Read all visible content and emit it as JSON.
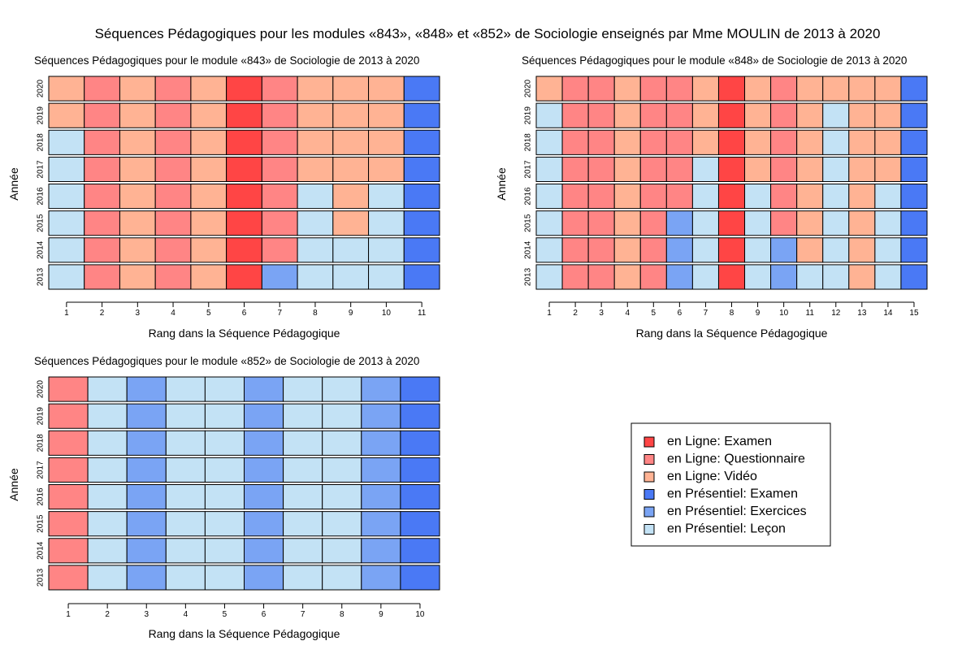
{
  "title": "Séquences Pédagogiques pour les modules «843», «848» et «852» de Sociologie enseignés par Mme MOULIN de 2013 à 2020",
  "legend": {
    "placement": "bottom-right",
    "entries": [
      {
        "key": "LE",
        "label": "en Ligne: Examen",
        "color": "#ff4545"
      },
      {
        "key": "LQ",
        "label": "en Ligne: Questionnaire",
        "color": "#ff8585"
      },
      {
        "key": "LV",
        "label": "en Ligne: Vidéo",
        "color": "#ffb394"
      },
      {
        "key": "PE",
        "label": "en Présentiel: Examen",
        "color": "#4a79f5"
      },
      {
        "key": "PX",
        "label": "en Présentiel: Exercices",
        "color": "#7aa4f4"
      },
      {
        "key": "PL",
        "label": "en Présentiel: Leçon",
        "color": "#c3e2f5"
      }
    ]
  },
  "chart_data": [
    {
      "type": "heatmap",
      "title": "Séquences Pédagogiques pour le module «843» de Sociologie de 2013 à 2020",
      "xlabel": "Rang dans la Séquence Pédagogique",
      "ylabel": "Année",
      "x": [
        1,
        2,
        3,
        4,
        5,
        6,
        7,
        8,
        9,
        10,
        11
      ],
      "years": [
        "2020",
        "2019",
        "2018",
        "2017",
        "2016",
        "2015",
        "2014",
        "2013"
      ],
      "rows": [
        [
          "LV",
          "LQ",
          "LV",
          "LQ",
          "LV",
          "LE",
          "LQ",
          "LV",
          "LV",
          "LV",
          "PE"
        ],
        [
          "LV",
          "LQ",
          "LV",
          "LQ",
          "LV",
          "LE",
          "LQ",
          "LV",
          "LV",
          "LV",
          "PE"
        ],
        [
          "PL",
          "LQ",
          "LV",
          "LQ",
          "LV",
          "LE",
          "LQ",
          "LV",
          "LV",
          "LV",
          "PE"
        ],
        [
          "PL",
          "LQ",
          "LV",
          "LQ",
          "LV",
          "LE",
          "LQ",
          "LV",
          "LV",
          "LV",
          "PE"
        ],
        [
          "PL",
          "LQ",
          "LV",
          "LQ",
          "LV",
          "LE",
          "LQ",
          "PL",
          "LV",
          "PL",
          "PE"
        ],
        [
          "PL",
          "LQ",
          "LV",
          "LQ",
          "LV",
          "LE",
          "LQ",
          "PL",
          "LV",
          "PL",
          "PE"
        ],
        [
          "PL",
          "LQ",
          "LV",
          "LQ",
          "LV",
          "LE",
          "LQ",
          "PL",
          "PL",
          "PL",
          "PE"
        ],
        [
          "PL",
          "LQ",
          "LV",
          "LQ",
          "LV",
          "LE",
          "PX",
          "PL",
          "PL",
          "PL",
          "PE"
        ]
      ]
    },
    {
      "type": "heatmap",
      "title": "Séquences Pédagogiques pour le module «848» de Sociologie de 2013 à 2020",
      "xlabel": "Rang dans la Séquence Pédagogique",
      "ylabel": "Année",
      "x": [
        1,
        2,
        3,
        4,
        5,
        6,
        7,
        8,
        9,
        10,
        11,
        12,
        13,
        14,
        15
      ],
      "years": [
        "2020",
        "2019",
        "2018",
        "2017",
        "2016",
        "2015",
        "2014",
        "2013"
      ],
      "rows": [
        [
          "LV",
          "LQ",
          "LQ",
          "LV",
          "LQ",
          "LQ",
          "LV",
          "LE",
          "LV",
          "LQ",
          "LV",
          "LV",
          "LV",
          "LV",
          "PE"
        ],
        [
          "PL",
          "LQ",
          "LQ",
          "LV",
          "LQ",
          "LQ",
          "LV",
          "LE",
          "LV",
          "LQ",
          "LV",
          "PL",
          "LV",
          "LV",
          "PE"
        ],
        [
          "PL",
          "LQ",
          "LQ",
          "LV",
          "LQ",
          "LQ",
          "LV",
          "LE",
          "LV",
          "LQ",
          "LV",
          "PL",
          "LV",
          "LV",
          "PE"
        ],
        [
          "PL",
          "LQ",
          "LQ",
          "LV",
          "LQ",
          "LQ",
          "PL",
          "LE",
          "LV",
          "LQ",
          "LV",
          "PL",
          "LV",
          "LV",
          "PE"
        ],
        [
          "PL",
          "LQ",
          "LQ",
          "LV",
          "LQ",
          "LQ",
          "PL",
          "LE",
          "PL",
          "LQ",
          "LV",
          "PL",
          "LV",
          "PL",
          "PE"
        ],
        [
          "PL",
          "LQ",
          "LQ",
          "LV",
          "LQ",
          "PX",
          "PL",
          "LE",
          "PL",
          "LQ",
          "LV",
          "PL",
          "LV",
          "PL",
          "PE"
        ],
        [
          "PL",
          "LQ",
          "LQ",
          "LV",
          "LQ",
          "PX",
          "PL",
          "LE",
          "PL",
          "PX",
          "LV",
          "PL",
          "LV",
          "PL",
          "PE"
        ],
        [
          "PL",
          "LQ",
          "LQ",
          "LV",
          "LQ",
          "PX",
          "PL",
          "LE",
          "PL",
          "PX",
          "PL",
          "PL",
          "LV",
          "PL",
          "PE"
        ]
      ]
    },
    {
      "type": "heatmap",
      "title": "Séquences Pédagogiques pour le module «852» de Sociologie de 2013 à 2020",
      "xlabel": "Rang dans la Séquence Pédagogique",
      "ylabel": "Année",
      "x": [
        1,
        2,
        3,
        4,
        5,
        6,
        7,
        8,
        9,
        10
      ],
      "years": [
        "2020",
        "2019",
        "2018",
        "2017",
        "2016",
        "2015",
        "2014",
        "2013"
      ],
      "rows": [
        [
          "LQ",
          "PL",
          "PX",
          "PL",
          "PL",
          "PX",
          "PL",
          "PL",
          "PX",
          "PE"
        ],
        [
          "LQ",
          "PL",
          "PX",
          "PL",
          "PL",
          "PX",
          "PL",
          "PL",
          "PX",
          "PE"
        ],
        [
          "LQ",
          "PL",
          "PX",
          "PL",
          "PL",
          "PX",
          "PL",
          "PL",
          "PX",
          "PE"
        ],
        [
          "LQ",
          "PL",
          "PX",
          "PL",
          "PL",
          "PX",
          "PL",
          "PL",
          "PX",
          "PE"
        ],
        [
          "LQ",
          "PL",
          "PX",
          "PL",
          "PL",
          "PX",
          "PL",
          "PL",
          "PX",
          "PE"
        ],
        [
          "LQ",
          "PL",
          "PX",
          "PL",
          "PL",
          "PX",
          "PL",
          "PL",
          "PX",
          "PE"
        ],
        [
          "LQ",
          "PL",
          "PX",
          "PL",
          "PL",
          "PX",
          "PL",
          "PL",
          "PX",
          "PE"
        ],
        [
          "LQ",
          "PL",
          "PX",
          "PL",
          "PL",
          "PX",
          "PL",
          "PL",
          "PX",
          "PE"
        ]
      ]
    }
  ]
}
